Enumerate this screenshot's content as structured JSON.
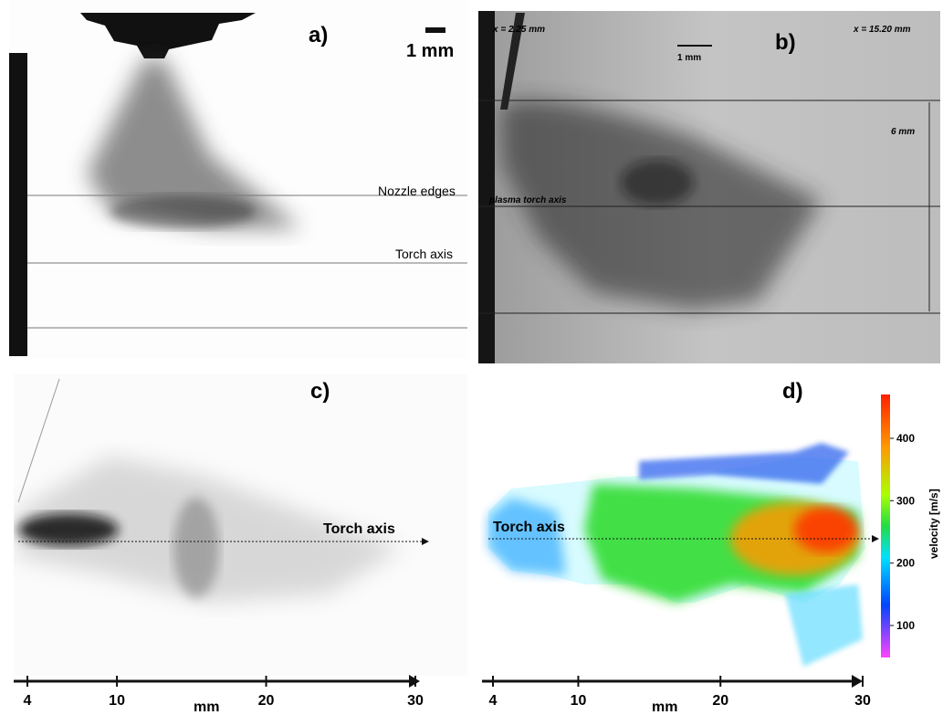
{
  "panels": [
    {
      "label": "a)",
      "scale_bar": "1 mm",
      "annotations": [
        "Nozzle edges",
        "Torch axis"
      ]
    },
    {
      "label": "b)",
      "annotations": [
        "x = 2.25 mm",
        "x = 15.20 mm",
        "1 mm",
        "6 mm",
        "plasma torch axis"
      ]
    },
    {
      "label": "c)",
      "annotations": [
        "Torch axis"
      ],
      "axis": {
        "ticks": [
          4,
          10,
          20,
          30
        ],
        "unit": "mm"
      }
    },
    {
      "label": "d)",
      "annotations": [
        "Torch axis"
      ],
      "axis": {
        "ticks": [
          4,
          10,
          20,
          30
        ],
        "unit": "mm"
      },
      "colorbar": {
        "label": "velocity [m/s]",
        "ticks": [
          100,
          200,
          300,
          400
        ]
      }
    }
  ]
}
